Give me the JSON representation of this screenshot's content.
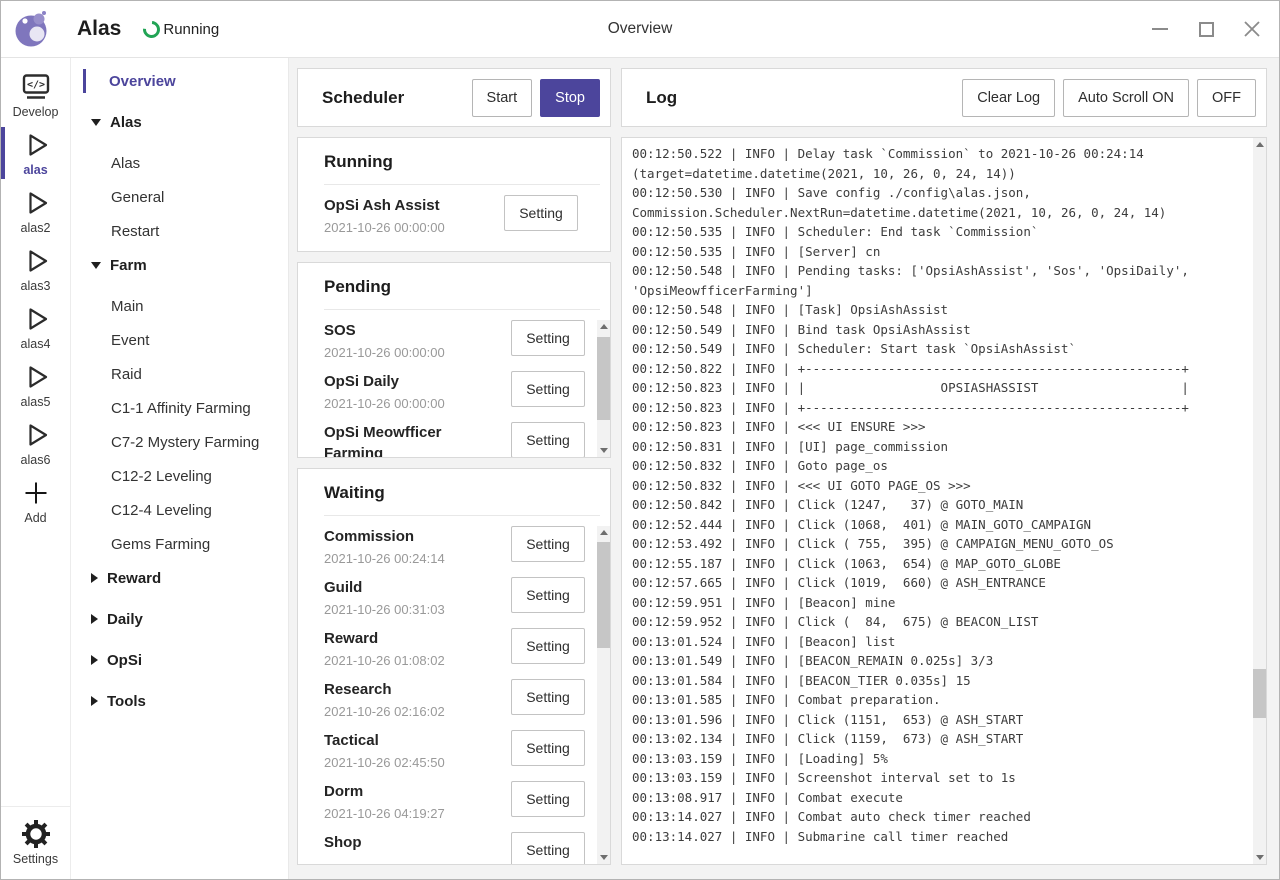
{
  "colors": {
    "accent": "#4c459c",
    "running_green": "#22a455"
  },
  "window": {
    "app_title": "Alas",
    "status": "Running",
    "title": "Overview"
  },
  "icon_sidebar": {
    "top_items": [
      {
        "id": "develop",
        "label": "Develop",
        "icon": "code-monitor-icon",
        "active": false
      },
      {
        "id": "alas",
        "label": "alas",
        "icon": "play-icon",
        "active": true
      },
      {
        "id": "alas2",
        "label": "alas2",
        "icon": "play-icon",
        "active": false
      },
      {
        "id": "alas3",
        "label": "alas3",
        "icon": "play-icon",
        "active": false
      },
      {
        "id": "alas4",
        "label": "alas4",
        "icon": "play-icon",
        "active": false
      },
      {
        "id": "alas5",
        "label": "alas5",
        "icon": "play-icon",
        "active": false
      },
      {
        "id": "alas6",
        "label": "alas6",
        "icon": "play-icon",
        "active": false
      },
      {
        "id": "add",
        "label": "Add",
        "icon": "plus-icon",
        "active": false
      }
    ],
    "bottom_items": [
      {
        "id": "settings",
        "label": "Settings",
        "icon": "gear-icon",
        "active": false
      }
    ]
  },
  "nav": {
    "items": [
      {
        "type": "link",
        "label": "Overview",
        "active": true
      },
      {
        "type": "group",
        "label": "Alas",
        "expanded": true,
        "children": [
          "Alas",
          "General",
          "Restart"
        ]
      },
      {
        "type": "group",
        "label": "Farm",
        "expanded": true,
        "children": [
          "Main",
          "Event",
          "Raid",
          "C1-1 Affinity Farming",
          "C7-2 Mystery Farming",
          "C12-2 Leveling",
          "C12-4 Leveling",
          "Gems Farming"
        ]
      },
      {
        "type": "group",
        "label": "Reward",
        "expanded": false,
        "children": []
      },
      {
        "type": "group",
        "label": "Daily",
        "expanded": false,
        "children": []
      },
      {
        "type": "group",
        "label": "OpSi",
        "expanded": false,
        "children": []
      },
      {
        "type": "group",
        "label": "Tools",
        "expanded": false,
        "children": []
      }
    ]
  },
  "scheduler": {
    "title": "Scheduler",
    "start_label": "Start",
    "stop_label": "Stop"
  },
  "setting_label": "Setting",
  "running": {
    "title": "Running",
    "items": [
      {
        "name": "OpSi Ash Assist",
        "time": "2021-10-26 00:00:00"
      }
    ]
  },
  "pending": {
    "title": "Pending",
    "items": [
      {
        "name": "SOS",
        "time": "2021-10-26 00:00:00"
      },
      {
        "name": "OpSi Daily",
        "time": "2021-10-26 00:00:00"
      },
      {
        "name": "OpSi Meowfficer Farming",
        "time": ""
      }
    ]
  },
  "waiting": {
    "title": "Waiting",
    "items": [
      {
        "name": "Commission",
        "time": "2021-10-26 00:24:14"
      },
      {
        "name": "Guild",
        "time": "2021-10-26 00:31:03"
      },
      {
        "name": "Reward",
        "time": "2021-10-26 01:08:02"
      },
      {
        "name": "Research",
        "time": "2021-10-26 02:16:02"
      },
      {
        "name": "Tactical",
        "time": "2021-10-26 02:45:50"
      },
      {
        "name": "Dorm",
        "time": "2021-10-26 04:19:27"
      },
      {
        "name": "Shop",
        "time": ""
      }
    ]
  },
  "log": {
    "title": "Log",
    "clear_label": "Clear Log",
    "autoscroll_on_label": "Auto Scroll ON",
    "autoscroll_off_label": "OFF",
    "lines": [
      "00:12:50.522 | INFO | Delay task `Commission` to 2021-10-26 00:24:14 (target=datetime.datetime(2021, 10, 26, 0, 24, 14))",
      "00:12:50.530 | INFO | Save config ./config\\alas.json, Commission.Scheduler.NextRun=datetime.datetime(2021, 10, 26, 0, 24, 14)",
      "00:12:50.535 | INFO | Scheduler: End task `Commission`",
      "00:12:50.535 | INFO | [Server] cn",
      "00:12:50.548 | INFO | Pending tasks: ['OpsiAshAssist', 'Sos', 'OpsiDaily', 'OpsiMeowfficerFarming']",
      "00:12:50.548 | INFO | [Task] OpsiAshAssist",
      "00:12:50.549 | INFO | Bind task OpsiAshAssist",
      "00:12:50.549 | INFO | Scheduler: Start task `OpsiAshAssist`",
      "00:12:50.822 | INFO | +--------------------------------------------------+",
      "00:12:50.823 | INFO | |                  OPSIASHASSIST                   |",
      "00:12:50.823 | INFO | +--------------------------------------------------+",
      "00:12:50.823 | INFO | <<< UI ENSURE >>>",
      "00:12:50.831 | INFO | [UI] page_commission",
      "00:12:50.832 | INFO | Goto page_os",
      "00:12:50.832 | INFO | <<< UI GOTO PAGE_OS >>>",
      "00:12:50.842 | INFO | Click (1247,   37) @ GOTO_MAIN",
      "00:12:52.444 | INFO | Click (1068,  401) @ MAIN_GOTO_CAMPAIGN",
      "00:12:53.492 | INFO | Click ( 755,  395) @ CAMPAIGN_MENU_GOTO_OS",
      "00:12:55.187 | INFO | Click (1063,  654) @ MAP_GOTO_GLOBE",
      "00:12:57.665 | INFO | Click (1019,  660) @ ASH_ENTRANCE",
      "00:12:59.951 | INFO | [Beacon] mine",
      "00:12:59.952 | INFO | Click (  84,  675) @ BEACON_LIST",
      "00:13:01.524 | INFO | [Beacon] list",
      "00:13:01.549 | INFO | [BEACON_REMAIN 0.025s] 3/3",
      "00:13:01.584 | INFO | [BEACON_TIER 0.035s] 15",
      "00:13:01.585 | INFO | Combat preparation.",
      "00:13:01.596 | INFO | Click (1151,  653) @ ASH_START",
      "00:13:02.134 | INFO | Click (1159,  673) @ ASH_START",
      "00:13:03.159 | INFO | [Loading] 5%",
      "00:13:03.159 | INFO | Screenshot interval set to 1s",
      "00:13:08.917 | INFO | Combat execute",
      "00:13:14.027 | INFO | Combat auto check timer reached",
      "00:13:14.027 | INFO | Submarine call timer reached"
    ]
  }
}
